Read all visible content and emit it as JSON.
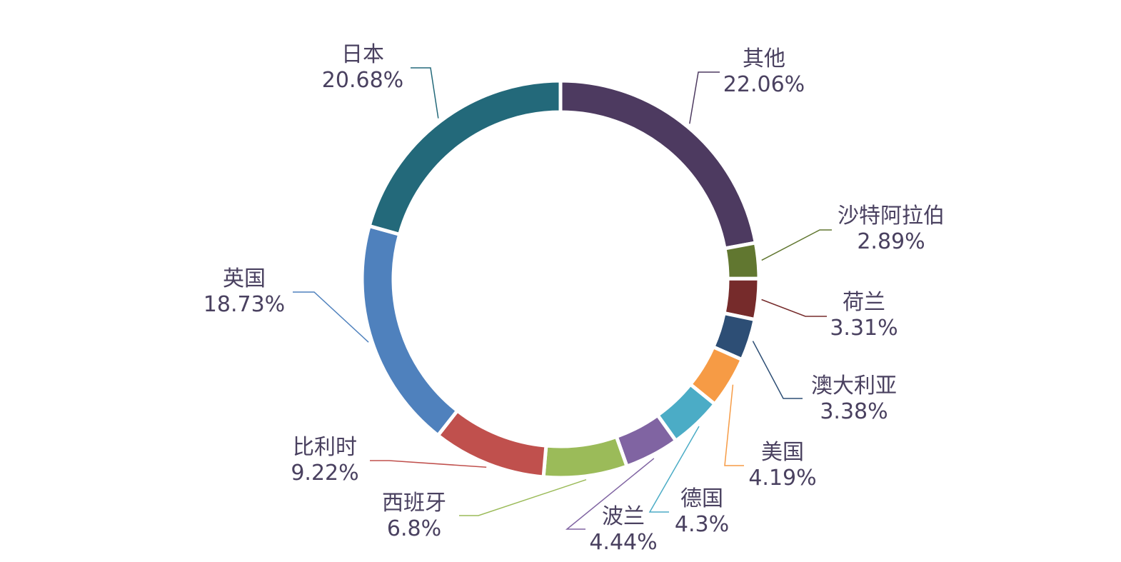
{
  "chart_data": {
    "type": "pie",
    "style": "donut",
    "slices": [
      {
        "label": "其他",
        "percent_label": "22.06%",
        "value": 22.06,
        "color": "#4d3a60"
      },
      {
        "label": "沙特阿拉伯",
        "percent_label": "2.89%",
        "value": 2.89,
        "color": "#617730"
      },
      {
        "label": "荷兰",
        "percent_label": "3.31%",
        "value": 3.31,
        "color": "#762b2b"
      },
      {
        "label": "澳大利亚",
        "percent_label": "3.38%",
        "value": 3.38,
        "color": "#2d4e75"
      },
      {
        "label": "美国",
        "percent_label": "4.19%",
        "value": 4.19,
        "color": "#f69b45"
      },
      {
        "label": "德国",
        "percent_label": "4.3%",
        "value": 4.3,
        "color": "#4bacc6"
      },
      {
        "label": "波兰",
        "percent_label": "4.44%",
        "value": 4.44,
        "color": "#8064a2"
      },
      {
        "label": "西班牙",
        "percent_label": "6.8%",
        "value": 6.8,
        "color": "#9bbb59"
      },
      {
        "label": "比利时",
        "percent_label": "9.22%",
        "value": 9.22,
        "color": "#c0504d"
      },
      {
        "label": "英国",
        "percent_label": "18.73%",
        "value": 18.73,
        "color": "#4f81bd"
      },
      {
        "label": "日本",
        "percent_label": "20.68%",
        "value": 20.68,
        "color": "#23697a"
      }
    ],
    "label_color": "#4a4160"
  }
}
